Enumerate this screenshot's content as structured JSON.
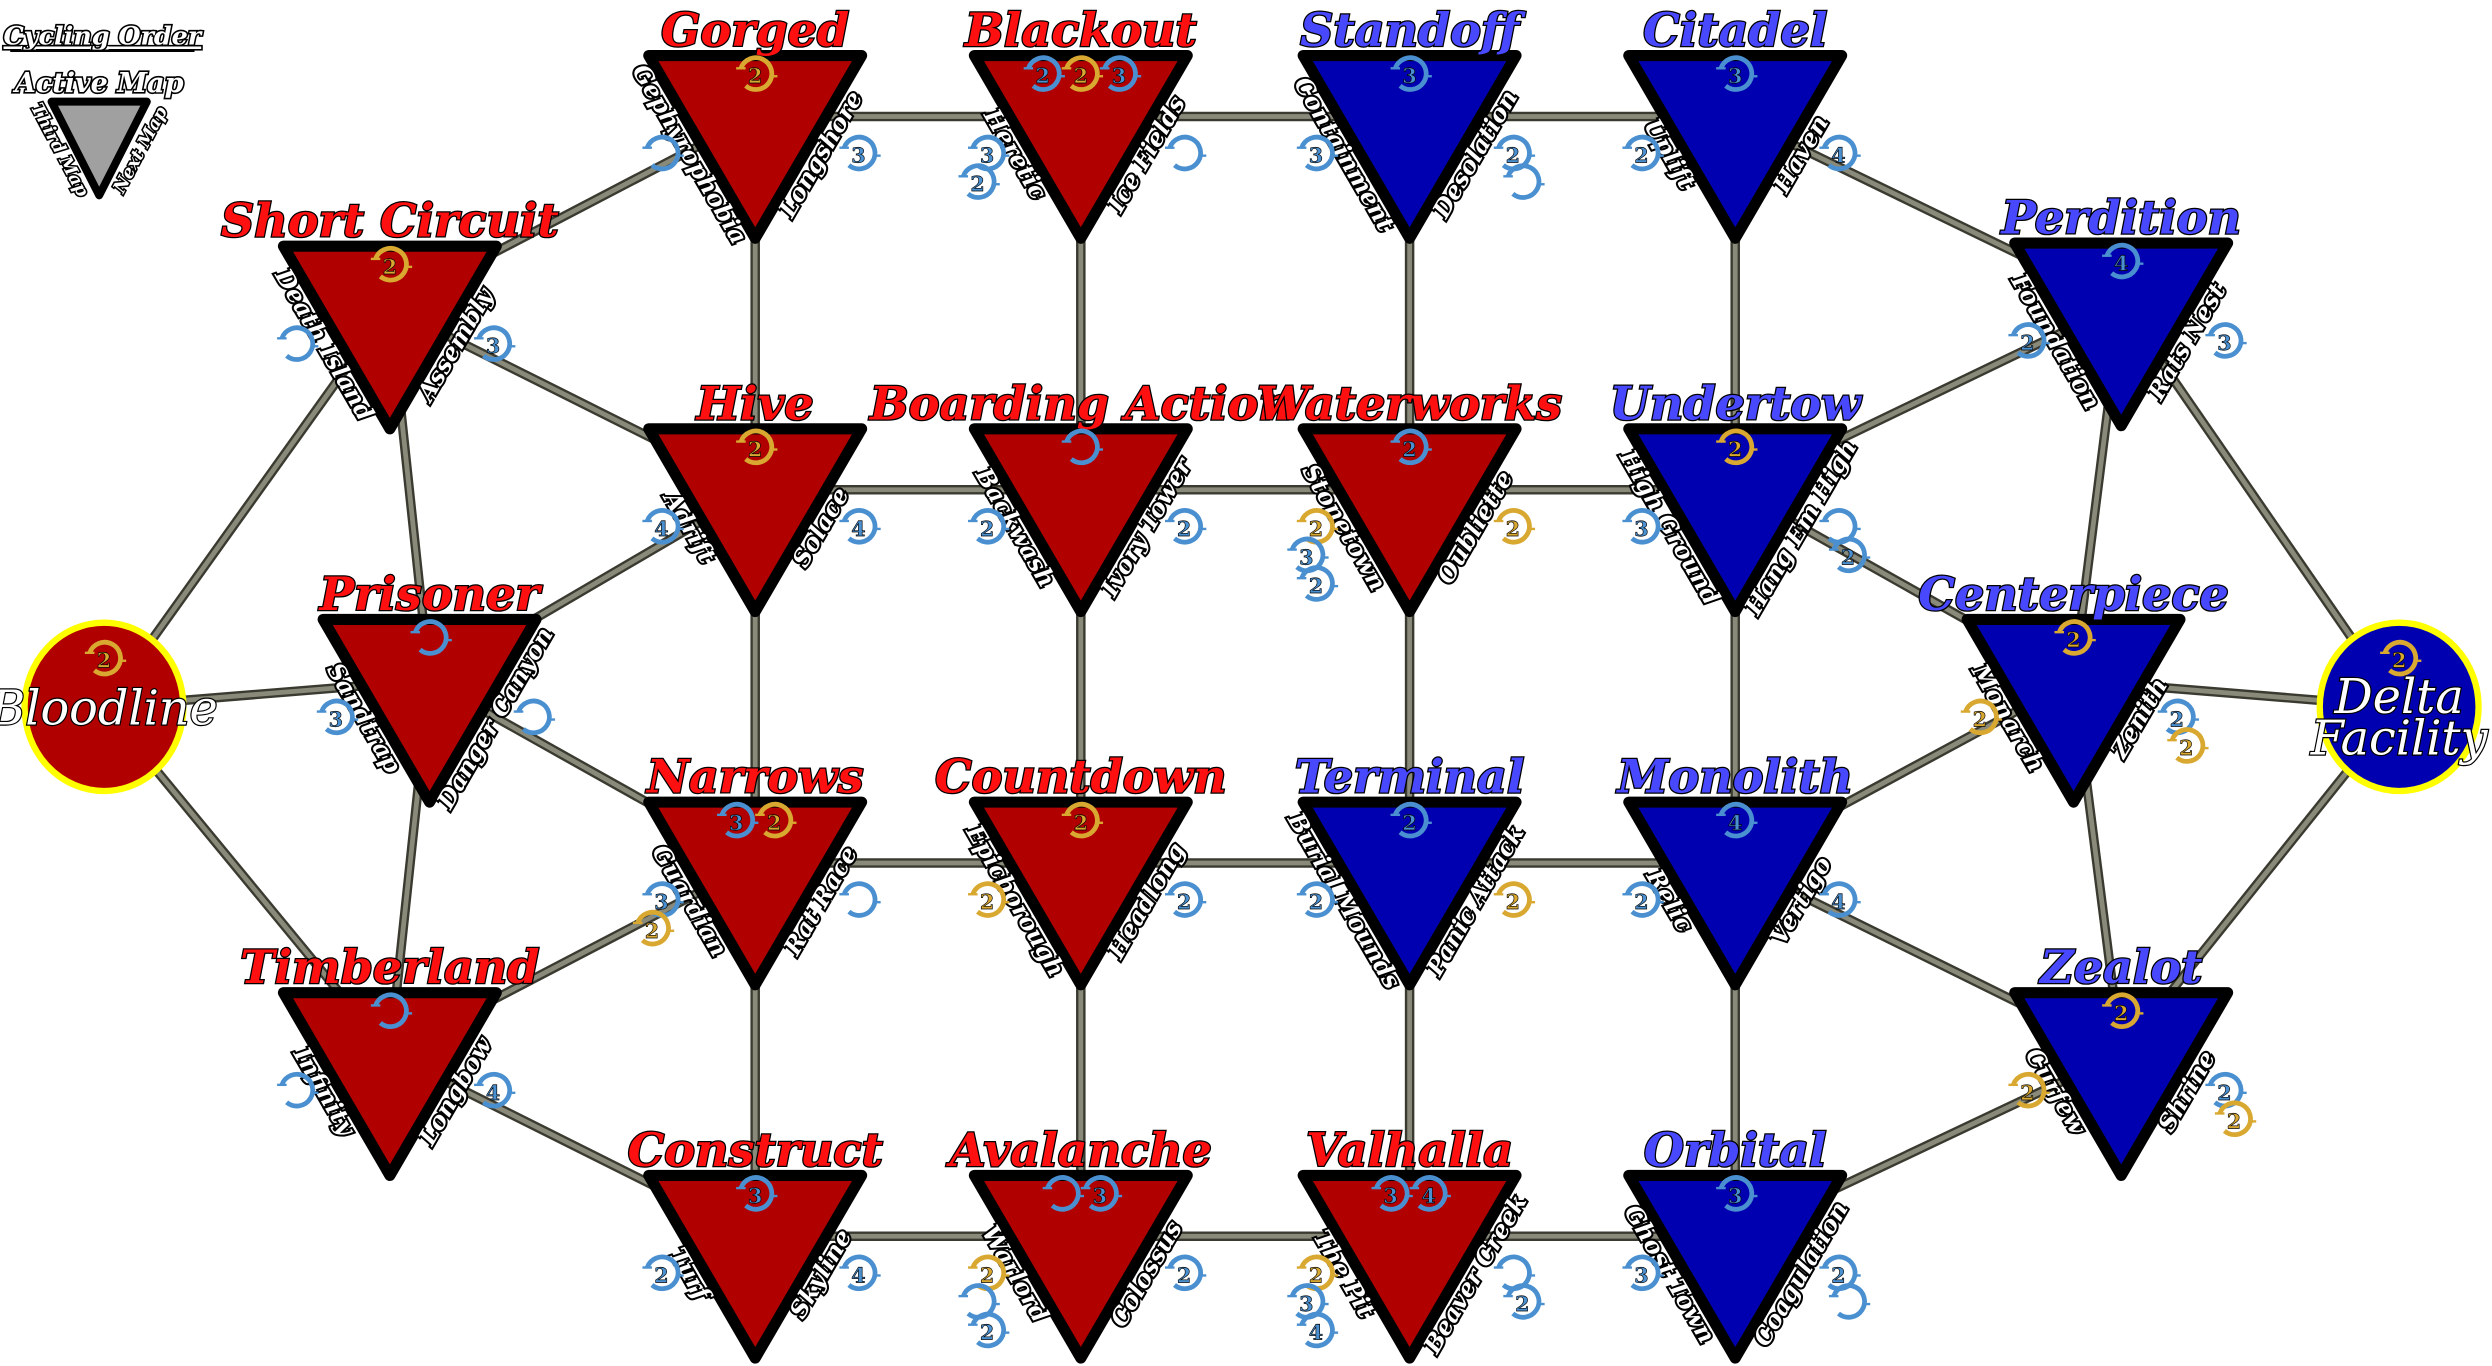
{
  "legend": {
    "title": "Cycling Order",
    "active": "Active Map",
    "third": "Third Map",
    "next": "Next Map"
  },
  "colors": {
    "red_map_fill": "#b00000",
    "blue_map_fill": "#0000b0",
    "red_title": "#ff1010",
    "blue_title": "#4848ff",
    "legend_fill": "#a0a0a0",
    "edge": "#8a8a7a",
    "halo_blue": "#4a90d0",
    "halo_gold": "#d8a830",
    "special_ring": "#ffff00"
  },
  "nodes": [
    {
      "id": "gorged",
      "name": "Gorged",
      "team": "red",
      "third": "Gephyrophobia",
      "next": "Longshore",
      "top": [
        "g2"
      ],
      "third_icons": [
        "b"
      ],
      "next_icons": [
        "b3"
      ]
    },
    {
      "id": "blackout",
      "name": "Blackout",
      "team": "red",
      "third": "Heretic",
      "next": "Ice Fields",
      "top": [
        "b2",
        "g2",
        "b3"
      ],
      "third_icons": [
        "b3",
        "b2"
      ],
      "next_icons": [
        "b"
      ]
    },
    {
      "id": "standoff",
      "name": "Standoff",
      "team": "blue",
      "third": "Containment",
      "next": "Desolation",
      "top": [
        "b3"
      ],
      "third_icons": [
        "b3"
      ],
      "next_icons": [
        "b2",
        "b"
      ]
    },
    {
      "id": "citadel",
      "name": "Citadel",
      "team": "blue",
      "third": "Uplift",
      "next": "Haven",
      "top": [
        "b3"
      ],
      "third_icons": [
        "b2"
      ],
      "next_icons": [
        "b4"
      ]
    },
    {
      "id": "shortcircuit",
      "name": "Short Circuit",
      "team": "red",
      "third": "Death Island",
      "next": "Assembly",
      "top": [
        "g2"
      ],
      "third_icons": [
        "b"
      ],
      "next_icons": [
        "b3"
      ]
    },
    {
      "id": "perdition",
      "name": "Perdition",
      "team": "blue",
      "third": "Foundation",
      "next": "Rats Nest",
      "top": [
        "b4"
      ],
      "third_icons": [
        "b2"
      ],
      "next_icons": [
        "b3"
      ]
    },
    {
      "id": "hive",
      "name": "Hive",
      "team": "red",
      "third": "Adrift",
      "next": "Solace",
      "top": [
        "g2"
      ],
      "third_icons": [
        "b4"
      ],
      "next_icons": [
        "b4"
      ]
    },
    {
      "id": "boarding",
      "name": "Boarding Action",
      "team": "red",
      "third": "Backwash",
      "next": "Ivory Tower",
      "top": [
        "b"
      ],
      "third_icons": [
        "b2"
      ],
      "next_icons": [
        "b2"
      ]
    },
    {
      "id": "waterworks",
      "name": "Waterworks",
      "team": "red",
      "third": "Stonetown",
      "next": "Oubliette",
      "top": [
        "b2"
      ],
      "third_icons": [
        "g2",
        "b3",
        "b2"
      ],
      "next_icons": [
        "g2"
      ]
    },
    {
      "id": "undertow",
      "name": "Undertow",
      "team": "blue",
      "third": "High Ground",
      "next": "Hang Em High",
      "top": [
        "g2"
      ],
      "third_icons": [
        "b3"
      ],
      "next_icons": [
        "b",
        "b2"
      ]
    },
    {
      "id": "prisoner",
      "name": "Prisoner",
      "team": "red",
      "third": "Sandtrap",
      "next": "Danger Canyon",
      "top": [
        "b"
      ],
      "third_icons": [
        "b3"
      ],
      "next_icons": [
        "b"
      ]
    },
    {
      "id": "centerpiece",
      "name": "Centerpiece",
      "team": "blue",
      "third": "Monarch",
      "next": "Zenith",
      "top": [
        "g2"
      ],
      "third_icons": [
        "g2"
      ],
      "next_icons": [
        "b2",
        "g2"
      ]
    },
    {
      "id": "narrows",
      "name": "Narrows",
      "team": "red",
      "third": "Guardian",
      "next": "Rat Race",
      "top": [
        "b3",
        "g2"
      ],
      "third_icons": [
        "b3",
        "g2"
      ],
      "next_icons": [
        "b"
      ]
    },
    {
      "id": "countdown",
      "name": "Countdown",
      "team": "red",
      "third": "Epicborough",
      "next": "Headlong",
      "top": [
        "g2"
      ],
      "third_icons": [
        "g2"
      ],
      "next_icons": [
        "b2"
      ]
    },
    {
      "id": "terminal",
      "name": "Terminal",
      "team": "blue",
      "third": "Burial Mounds",
      "next": "Panic Attack",
      "top": [
        "b2"
      ],
      "third_icons": [
        "b2"
      ],
      "next_icons": [
        "g2"
      ]
    },
    {
      "id": "monolith",
      "name": "Monolith",
      "team": "blue",
      "third": "Relic",
      "next": "Vertigo",
      "top": [
        "b4"
      ],
      "third_icons": [
        "b2"
      ],
      "next_icons": [
        "b4"
      ]
    },
    {
      "id": "timberland",
      "name": "Timberland",
      "team": "red",
      "third": "Infinity",
      "next": "Longbow",
      "top": [
        "b"
      ],
      "third_icons": [
        "b"
      ],
      "next_icons": [
        "b4"
      ]
    },
    {
      "id": "zealot",
      "name": "Zealot",
      "team": "blue",
      "third": "Curfew",
      "next": "Shrine",
      "top": [
        "g2"
      ],
      "third_icons": [
        "g2"
      ],
      "next_icons": [
        "b2",
        "g2"
      ]
    },
    {
      "id": "construct",
      "name": "Construct",
      "team": "red",
      "third": "Turf",
      "next": "Skyline",
      "top": [
        "b3"
      ],
      "third_icons": [
        "b2"
      ],
      "next_icons": [
        "b4"
      ]
    },
    {
      "id": "avalanche",
      "name": "Avalanche",
      "team": "red",
      "third": "Warlord",
      "next": "Colossus",
      "top": [
        "b",
        "b3"
      ],
      "third_icons": [
        "g2",
        "b",
        "b2"
      ],
      "next_icons": [
        "b2"
      ]
    },
    {
      "id": "valhalla",
      "name": "Valhalla",
      "team": "red",
      "third": "The Pit",
      "next": "Beaver Creek",
      "top": [
        "b3",
        "b4"
      ],
      "third_icons": [
        "g2",
        "b3",
        "b4"
      ],
      "next_icons": [
        "b",
        "b2"
      ]
    },
    {
      "id": "orbital",
      "name": "Orbital",
      "team": "blue",
      "third": "Ghost Town",
      "next": "Coagulation",
      "top": [
        "b3"
      ],
      "third_icons": [
        "b3"
      ],
      "next_icons": [
        "b2",
        "b"
      ]
    }
  ],
  "endpoints": [
    {
      "id": "bloodline",
      "name": "Bloodline",
      "lines": [
        "Bloodline"
      ],
      "team": "red",
      "top": [
        "g2"
      ]
    },
    {
      "id": "delta",
      "name": "Delta Facility",
      "lines": [
        "Delta",
        "Facility"
      ],
      "team": "blue",
      "top": [
        "g2"
      ]
    }
  ],
  "edges": [
    [
      "gorged",
      "blackout"
    ],
    [
      "blackout",
      "standoff"
    ],
    [
      "standoff",
      "citadel"
    ],
    [
      "hive",
      "boarding"
    ],
    [
      "boarding",
      "waterworks"
    ],
    [
      "waterworks",
      "undertow"
    ],
    [
      "narrows",
      "countdown"
    ],
    [
      "countdown",
      "terminal"
    ],
    [
      "terminal",
      "monolith"
    ],
    [
      "construct",
      "avalanche"
    ],
    [
      "avalanche",
      "valhalla"
    ],
    [
      "valhalla",
      "orbital"
    ],
    [
      "gorged",
      "hive"
    ],
    [
      "blackout",
      "boarding"
    ],
    [
      "standoff",
      "waterworks"
    ],
    [
      "citadel",
      "undertow"
    ],
    [
      "hive",
      "narrows"
    ],
    [
      "boarding",
      "countdown"
    ],
    [
      "waterworks",
      "terminal"
    ],
    [
      "undertow",
      "monolith"
    ],
    [
      "narrows",
      "construct"
    ],
    [
      "countdown",
      "avalanche"
    ],
    [
      "terminal",
      "valhalla"
    ],
    [
      "monolith",
      "orbital"
    ],
    [
      "shortcircuit",
      "gorged"
    ],
    [
      "shortcircuit",
      "hive"
    ],
    [
      "shortcircuit",
      "bloodline"
    ],
    [
      "shortcircuit",
      "prisoner"
    ],
    [
      "prisoner",
      "bloodline"
    ],
    [
      "prisoner",
      "hive"
    ],
    [
      "prisoner",
      "narrows"
    ],
    [
      "prisoner",
      "timberland"
    ],
    [
      "bloodline",
      "timberland"
    ],
    [
      "timberland",
      "narrows"
    ],
    [
      "timberland",
      "construct"
    ],
    [
      "citadel",
      "perdition"
    ],
    [
      "perdition",
      "undertow"
    ],
    [
      "perdition",
      "centerpiece"
    ],
    [
      "perdition",
      "delta"
    ],
    [
      "centerpiece",
      "undertow"
    ],
    [
      "centerpiece",
      "delta"
    ],
    [
      "centerpiece",
      "monolith"
    ],
    [
      "centerpiece",
      "zealot"
    ],
    [
      "zealot",
      "monolith"
    ],
    [
      "zealot",
      "delta"
    ],
    [
      "zealot",
      "orbital"
    ]
  ]
}
